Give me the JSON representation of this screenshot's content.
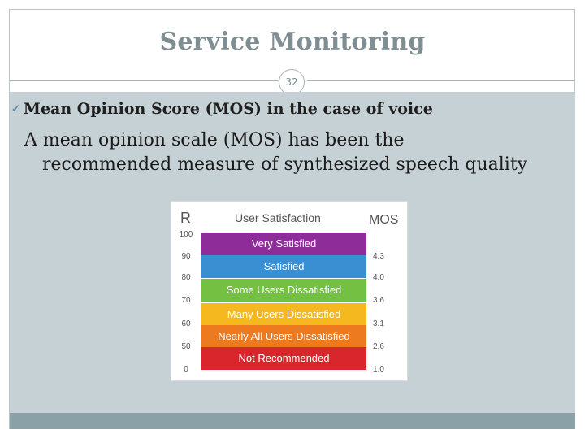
{
  "slide": {
    "title": "Service Monitoring",
    "page_number": "32",
    "bullet": "Mean Opinion Score (MOS) in the case of voice",
    "paragraph_line1": "A mean opinion scale (MOS) has been the",
    "paragraph_line2": "recommended measure of synthesized speech quality"
  },
  "mos_chart": {
    "r_label": "R",
    "satisfaction_label": "User Satisfaction",
    "mos_label": "MOS",
    "r_ticks": [
      "100",
      "90",
      "80",
      "70",
      "60",
      "50",
      "0"
    ],
    "bands": [
      {
        "label": "Very Satisfied",
        "color": "#8e2d9a"
      },
      {
        "label": "Satisfied",
        "color": "#3a8fd3"
      },
      {
        "label": "Some Users Dissatisfied",
        "color": "#74c043"
      },
      {
        "label": "Many Users Dissatisfied",
        "color": "#f5b91f"
      },
      {
        "label": "Nearly All Users Dissatisfied",
        "color": "#ee7a1f"
      },
      {
        "label": "Not Recommended",
        "color": "#d9262c"
      }
    ],
    "mos_values": [
      "4.3",
      "4.0",
      "3.6",
      "3.1",
      "2.6",
      "1.0"
    ]
  },
  "colors": {
    "title": "#7f8e92",
    "content_background": "#c6d1d5",
    "footer_bar": "#8aa1a7",
    "bullet": "#5d8ea8"
  }
}
